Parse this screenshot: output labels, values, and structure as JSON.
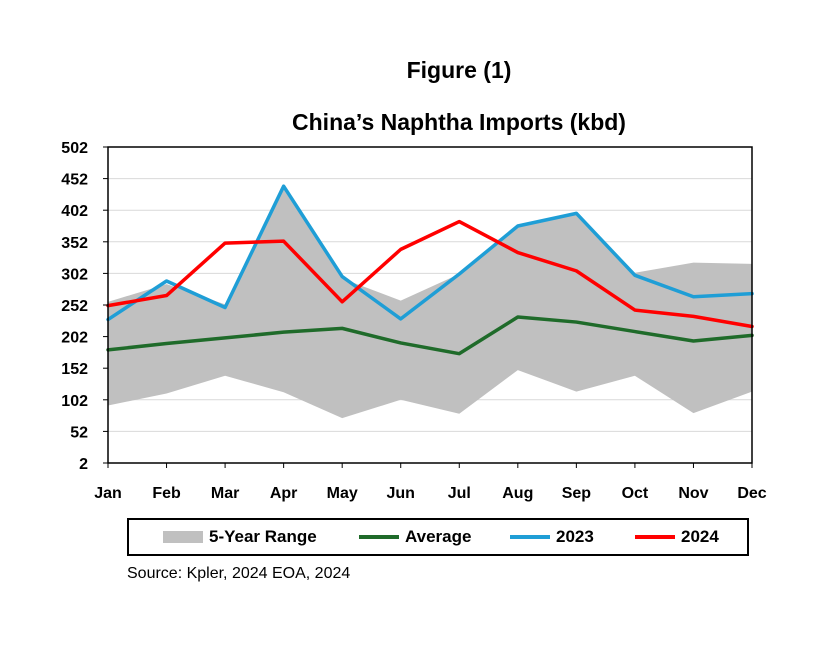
{
  "figure_label": "Figure (1)",
  "colors": {
    "range": "#c0c0c0",
    "average": "#1f6b2a",
    "y2023": "#1f9ed6",
    "y2024": "#ff0000",
    "grid": "#d9d9d9"
  },
  "source": "Source: Kpler, 2024  EOA, 2024",
  "legend": {
    "range": "5-Year Range",
    "average": "Average",
    "y2023": "2023",
    "y2024": "2024"
  },
  "chart_data": {
    "type": "line",
    "title": "China’s Naphtha Imports  (kbd)",
    "xlabel": "",
    "ylabel": "",
    "ylim": [
      2,
      502
    ],
    "yticks": [
      2,
      52,
      102,
      152,
      202,
      252,
      302,
      352,
      402,
      452,
      502
    ],
    "grid": true,
    "legend_position": "bottom",
    "categories": [
      "Jan",
      "Feb",
      "Mar",
      "Apr",
      "May",
      "Jun",
      "Jul",
      "Aug",
      "Sep",
      "Oct",
      "Nov",
      "Dec"
    ],
    "range": {
      "name": "5-Year Range",
      "low": [
        93,
        112,
        140,
        114,
        73,
        102,
        80,
        149,
        115,
        140,
        81,
        115
      ],
      "high": [
        257,
        285,
        253,
        440,
        294,
        259,
        301,
        379,
        398,
        303,
        319,
        317
      ]
    },
    "series": [
      {
        "name": "Average",
        "values": [
          181,
          191,
          200,
          209,
          215,
          192,
          175,
          233,
          225,
          210,
          195,
          204
        ]
      },
      {
        "name": "2023",
        "values": [
          229,
          290,
          248,
          440,
          297,
          230,
          301,
          377,
          397,
          299,
          265,
          270
        ]
      },
      {
        "name": "2024",
        "values": [
          251,
          267,
          350,
          353,
          257,
          340,
          384,
          335,
          306,
          244,
          234,
          218
        ]
      }
    ]
  }
}
